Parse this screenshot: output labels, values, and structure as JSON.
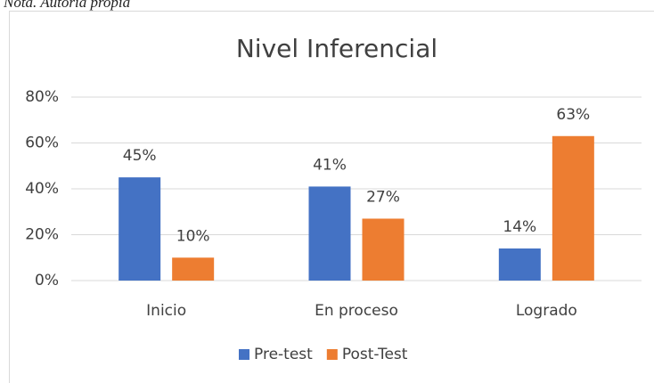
{
  "note": "Nota. Autoría propia",
  "chart_data": {
    "type": "bar",
    "title": "Nivel Inferencial",
    "categories": [
      "Inicio",
      "En proceso",
      "Logrado"
    ],
    "series": [
      {
        "name": "Pre-test",
        "color": "#4472c4",
        "values": [
          45,
          41,
          14
        ],
        "value_labels": [
          "45%",
          "41%",
          "14%"
        ]
      },
      {
        "name": "Post-Test",
        "color": "#ed7d31",
        "values": [
          10,
          27,
          63
        ],
        "value_labels": [
          "10%",
          "27%",
          "63%"
        ]
      }
    ],
    "ylim": [
      0,
      80
    ],
    "yticks": [
      {
        "value": 0,
        "label": "0%"
      },
      {
        "value": 20,
        "label": "20%"
      },
      {
        "value": 40,
        "label": "40%"
      },
      {
        "value": 60,
        "label": "60%"
      },
      {
        "value": 80,
        "label": "80%"
      }
    ],
    "grid": true,
    "legend": "bottom"
  }
}
